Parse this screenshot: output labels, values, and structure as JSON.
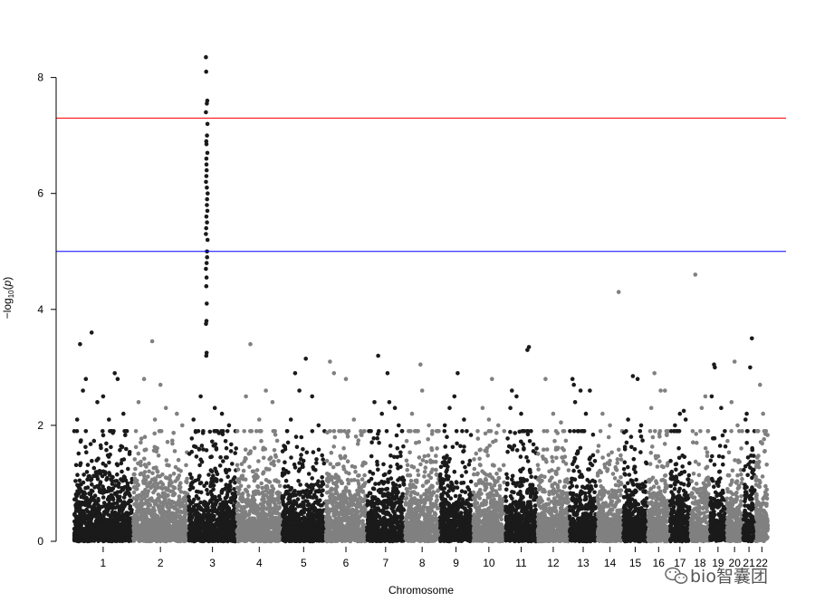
{
  "chart_data": {
    "type": "scatter",
    "title": "",
    "xlabel": "Chromosome",
    "ylabel": "-log10(p)",
    "ylabel_parts": {
      "prefix": "−log",
      "sub": "10",
      "open": "(",
      "var": "p",
      "close": ")"
    },
    "ylim": [
      0,
      8.4
    ],
    "y_ticks": [
      0,
      2,
      4,
      6,
      8
    ],
    "grid": false,
    "legend": "none",
    "colors": [
      "#1a1a1a",
      "#808080"
    ],
    "thresholds": [
      {
        "value": 7.3,
        "color": "#ff0000"
      },
      {
        "value": 5.0,
        "color": "#0000ff"
      }
    ],
    "chromosomes": [
      {
        "label": "1",
        "tops": [
          [
            0.3,
            3.6
          ],
          [
            0.1,
            3.4
          ],
          [
            0.7,
            2.9
          ],
          [
            0.75,
            2.8
          ],
          [
            0.2,
            2.8
          ],
          [
            0.15,
            2.6
          ],
          [
            0.5,
            2.5
          ],
          [
            0.4,
            2.4
          ],
          [
            0.6,
            2.1
          ],
          [
            0.85,
            2.2
          ],
          [
            0.05,
            2.1
          ],
          [
            0.9,
            1.9
          ]
        ]
      },
      {
        "label": "2",
        "tops": [
          [
            0.35,
            3.45
          ],
          [
            0.2,
            2.8
          ],
          [
            0.5,
            2.7
          ],
          [
            0.1,
            2.4
          ],
          [
            0.6,
            2.3
          ],
          [
            0.8,
            2.2
          ],
          [
            0.4,
            2.1
          ],
          [
            0.9,
            2.0
          ]
        ]
      },
      {
        "label": "3",
        "tops": [
          [
            0.25,
            2.5
          ],
          [
            0.55,
            2.3
          ],
          [
            0.7,
            2.2
          ],
          [
            0.1,
            2.1
          ],
          [
            0.85,
            2.0
          ]
        ],
        "peak": {
          "pos": 0.38,
          "values": [
            8.35,
            8.1,
            7.6,
            7.55,
            7.4,
            7.2,
            7.0,
            6.9,
            6.85,
            6.7,
            6.6,
            6.5,
            6.4,
            6.3,
            6.2,
            6.1,
            6.0,
            5.9,
            5.8,
            5.7,
            5.6,
            5.5,
            5.4,
            5.3,
            5.2,
            5.0,
            4.9,
            4.8,
            4.7,
            4.55,
            4.4,
            4.1,
            3.8,
            3.75,
            3.25,
            3.2
          ]
        }
      },
      {
        "label": "4",
        "tops": [
          [
            0.3,
            3.4
          ],
          [
            0.65,
            2.6
          ],
          [
            0.8,
            2.4
          ],
          [
            0.2,
            2.5
          ],
          [
            0.5,
            2.1
          ]
        ]
      },
      {
        "label": "5",
        "tops": [
          [
            0.55,
            3.15
          ],
          [
            0.3,
            2.9
          ],
          [
            0.4,
            2.6
          ],
          [
            0.7,
            2.5
          ],
          [
            0.2,
            2.1
          ],
          [
            0.85,
            2.0
          ]
        ]
      },
      {
        "label": "6",
        "tops": [
          [
            0.1,
            3.1
          ],
          [
            0.5,
            2.8
          ],
          [
            0.2,
            2.9
          ],
          [
            0.7,
            2.1
          ]
        ]
      },
      {
        "label": "7",
        "tops": [
          [
            0.3,
            3.2
          ],
          [
            0.55,
            2.9
          ],
          [
            0.2,
            2.4
          ],
          [
            0.75,
            2.3
          ],
          [
            0.6,
            2.4
          ],
          [
            0.4,
            2.2
          ],
          [
            0.85,
            2.0
          ]
        ]
      },
      {
        "label": "8",
        "tops": [
          [
            0.45,
            3.05
          ],
          [
            0.5,
            2.6
          ],
          [
            0.2,
            2.2
          ],
          [
            0.7,
            2.0
          ]
        ]
      },
      {
        "label": "9",
        "tops": [
          [
            0.55,
            2.9
          ],
          [
            0.45,
            2.5
          ],
          [
            0.3,
            2.3
          ],
          [
            0.75,
            2.1
          ],
          [
            0.15,
            2.0
          ]
        ]
      },
      {
        "label": "10",
        "tops": [
          [
            0.6,
            2.8
          ],
          [
            0.3,
            2.3
          ],
          [
            0.5,
            2.1
          ],
          [
            0.8,
            2.0
          ]
        ]
      },
      {
        "label": "11",
        "tops": [
          [
            0.75,
            3.35
          ],
          [
            0.7,
            3.3
          ],
          [
            0.2,
            2.6
          ],
          [
            0.35,
            2.5
          ],
          [
            0.5,
            2.2
          ],
          [
            0.15,
            2.3
          ]
        ]
      },
      {
        "label": "12",
        "tops": [
          [
            0.25,
            2.8
          ],
          [
            0.5,
            2.2
          ],
          [
            0.75,
            2.05
          ]
        ]
      },
      {
        "label": "13",
        "tops": [
          [
            0.1,
            2.8
          ],
          [
            0.15,
            2.7
          ],
          [
            0.4,
            2.6
          ],
          [
            0.75,
            2.6
          ],
          [
            0.2,
            2.4
          ],
          [
            0.6,
            2.2
          ]
        ]
      },
      {
        "label": "14",
        "tops": [
          [
            0.85,
            4.3
          ],
          [
            0.2,
            2.2
          ],
          [
            0.5,
            2.0
          ]
        ]
      },
      {
        "label": "15",
        "tops": [
          [
            0.4,
            2.85
          ],
          [
            0.6,
            2.8
          ],
          [
            0.2,
            2.1
          ],
          [
            0.75,
            2.0
          ]
        ]
      },
      {
        "label": "16",
        "tops": [
          [
            0.3,
            2.9
          ],
          [
            0.6,
            2.6
          ],
          [
            0.8,
            2.6
          ],
          [
            0.15,
            2.3
          ]
        ]
      },
      {
        "label": "17",
        "tops": [
          [
            0.7,
            2.25
          ],
          [
            0.5,
            2.2
          ],
          [
            0.25,
            2.0
          ],
          [
            0.8,
            2.1
          ]
        ]
      },
      {
        "label": "18",
        "tops": [
          [
            0.25,
            4.6
          ],
          [
            0.6,
            2.3
          ],
          [
            0.8,
            2.5
          ]
        ]
      },
      {
        "label": "19",
        "tops": [
          [
            0.25,
            3.05
          ],
          [
            0.3,
            3.0
          ],
          [
            0.1,
            2.5
          ],
          [
            0.7,
            2.3
          ]
        ]
      },
      {
        "label": "20",
        "tops": [
          [
            0.5,
            3.1
          ],
          [
            0.3,
            2.4
          ],
          [
            0.7,
            2.0
          ]
        ]
      },
      {
        "label": "21",
        "tops": [
          [
            0.75,
            3.5
          ],
          [
            0.6,
            3.0
          ],
          [
            0.3,
            2.2
          ],
          [
            0.2,
            2.1
          ]
        ]
      },
      {
        "label": "22",
        "tops": [
          [
            0.35,
            2.7
          ],
          [
            0.6,
            2.2
          ],
          [
            0.2,
            1.9
          ]
        ]
      }
    ]
  },
  "watermark": {
    "text": "bio智囊团"
  }
}
